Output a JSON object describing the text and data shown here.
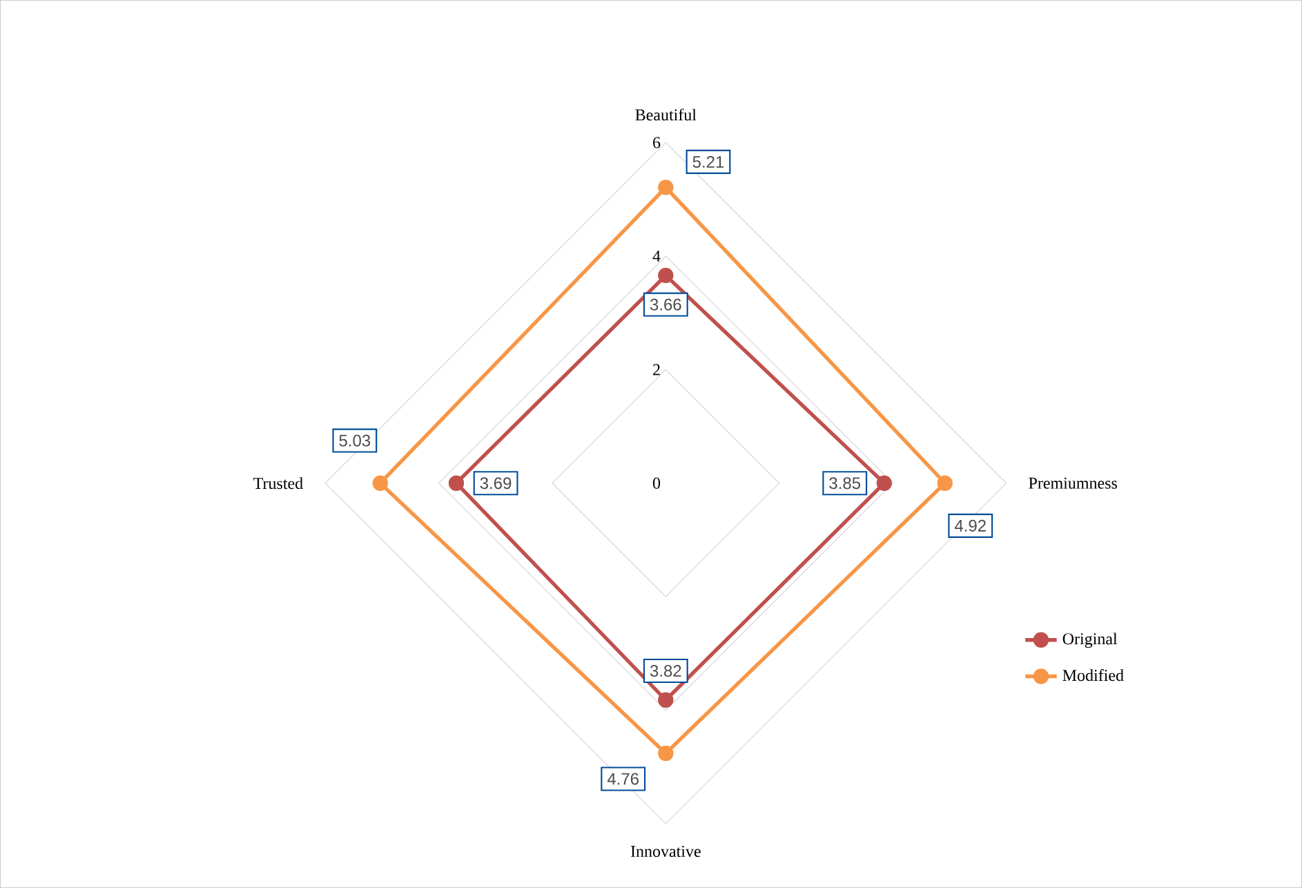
{
  "chart_data": {
    "type": "radar",
    "categories": [
      "Beautiful",
      "Premiumness",
      "Innovative",
      "Trusted"
    ],
    "series": [
      {
        "name": "Original",
        "color": "#c0504d",
        "values": [
          3.66,
          3.85,
          3.82,
          3.69
        ]
      },
      {
        "name": "Modified",
        "color": "#f79646",
        "values": [
          5.21,
          4.92,
          4.76,
          5.03
        ]
      }
    ],
    "ylim": [
      0,
      6
    ],
    "yticks": [
      {
        "value": 0,
        "label": "0"
      },
      2,
      4,
      6
    ],
    "grid": true,
    "legend": "right",
    "marker": "circle",
    "line_style": "solid",
    "data_labels": true
  }
}
